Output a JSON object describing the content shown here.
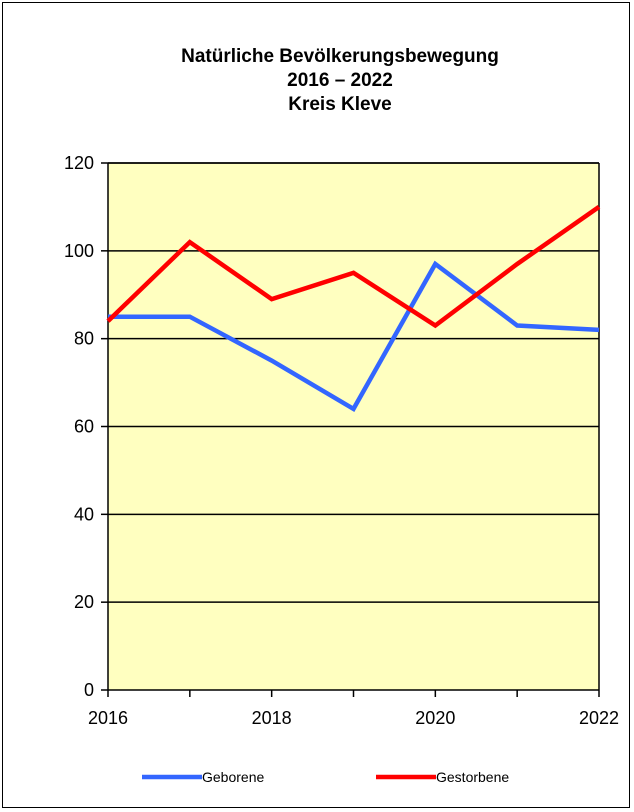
{
  "chart_data": {
    "type": "line",
    "title_lines": [
      "Natürliche Bevölkerungsbewegung",
      "2016 – 2022",
      "Kreis Kleve"
    ],
    "xlabel": "",
    "ylabel": "",
    "x": [
      2016,
      2017,
      2018,
      2019,
      2020,
      2021,
      2022
    ],
    "x_tick_labels": [
      "2016",
      "2018",
      "2020",
      "2022"
    ],
    "ylim": [
      0,
      120
    ],
    "y_ticks": [
      0,
      20,
      40,
      60,
      80,
      100,
      120
    ],
    "grid": true,
    "plot_background": "#ffffc0",
    "legend_position": "bottom",
    "series": [
      {
        "name": "Geborene",
        "color": "#3366ff",
        "values": [
          85,
          85,
          75,
          64,
          97,
          83,
          82
        ]
      },
      {
        "name": "Gestorbene",
        "color": "#ff0000",
        "values": [
          84,
          102,
          89,
          95,
          83,
          97,
          110
        ]
      }
    ]
  }
}
